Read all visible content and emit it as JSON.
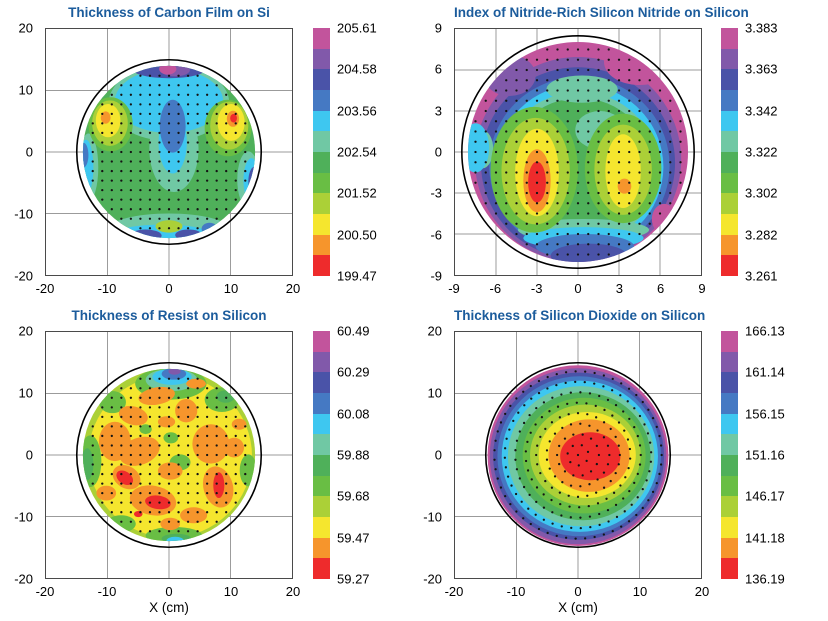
{
  "page": {
    "background": "#ffffff",
    "title_color": "#1c5c9c"
  },
  "palette": [
    "#c2549c",
    "#8159aa",
    "#4a53a8",
    "#4579c3",
    "#3ec7f0",
    "#70c8a4",
    "#4fb05a",
    "#69be44",
    "#abd037",
    "#f5e62e",
    "#f6952c",
    "#ee2b2c"
  ],
  "grid_color": "#9b9b9b",
  "chart_data": [
    {
      "id": "carbon-film",
      "type": "heatmap",
      "title": "Thickness of Carbon Film on Si",
      "xlabel": "",
      "axis": {
        "min": -20,
        "max": 20,
        "ticks": [
          -20,
          -10,
          0,
          10,
          20
        ]
      },
      "wafer_radius": 15,
      "fill_radius": 14,
      "fill_center": [
        0,
        0
      ],
      "colorbar_labels": [
        "205.61",
        "204.58",
        "203.56",
        "202.54",
        "201.52",
        "200.50",
        "199.47"
      ],
      "base_color": 7,
      "blobs": [
        [
          6,
          0,
          8,
          9.8,
          6.2
        ],
        [
          6,
          0.8,
          0.5,
          4.0,
          7.0
        ],
        [
          5,
          0,
          8.3,
          8.8,
          5.2
        ],
        [
          5,
          0.6,
          1.5,
          2.3,
          5.0
        ],
        [
          4,
          0.6,
          4.2,
          2.1,
          4.3
        ],
        [
          6,
          -13.1,
          -2.5,
          1.6,
          5.5
        ],
        [
          5,
          -13.5,
          -2.5,
          1.2,
          4.5
        ],
        [
          4,
          -13.9,
          -0.5,
          0.8,
          2.0
        ],
        [
          6,
          12.9,
          -4.5,
          1.8,
          4.6
        ],
        [
          5,
          13.4,
          -4.6,
          1.3,
          3.6
        ],
        [
          3,
          13.9,
          -4.8,
          1.0,
          2.4
        ],
        [
          6,
          0,
          -12.4,
          9.6,
          2.4
        ],
        [
          5,
          -1,
          -13.3,
          7.6,
          1.5
        ],
        [
          9,
          0,
          -12.1,
          2.2,
          1.0
        ],
        [
          3,
          -3.8,
          -13.6,
          2.6,
          1.0
        ],
        [
          3,
          3.2,
          -13.5,
          2.2,
          0.9
        ],
        [
          4,
          6.6,
          -12.5,
          1.3,
          1.0
        ],
        [
          3,
          0,
          13.5,
          6.0,
          1.5
        ],
        [
          2,
          1.0,
          13.3,
          2.4,
          1.0
        ],
        [
          1,
          -0.2,
          13.5,
          1.4,
          0.9
        ],
        [
          8,
          -9.5,
          4.5,
          3.6,
          4.4
        ],
        [
          9,
          -9.6,
          4.7,
          2.9,
          3.7
        ],
        [
          10,
          -9.9,
          5.1,
          2.0,
          2.7
        ],
        [
          11,
          -10.3,
          5.6,
          0.8,
          1.0
        ],
        [
          8,
          9.6,
          3.9,
          3.8,
          4.6
        ],
        [
          9,
          9.8,
          4.3,
          3.1,
          3.9
        ],
        [
          10,
          10.1,
          4.8,
          2.2,
          3.0
        ],
        [
          11,
          10.4,
          5.4,
          1.0,
          1.3
        ],
        [
          12,
          10.5,
          5.5,
          0.55,
          0.7
        ]
      ],
      "dots": {
        "pattern": "grid",
        "spacing": 1.55,
        "clip": 13.8
      }
    },
    {
      "id": "nitride-index",
      "type": "heatmap",
      "title": "Index of Nitride-Rich Silicon Nitride on Silicon",
      "xlabel": "",
      "axis": {
        "min": -9,
        "max": 9,
        "ticks": [
          -9,
          -6,
          -3,
          0,
          3,
          6,
          9
        ]
      },
      "wafer_radius": 8.5,
      "fill_radius": 8.05,
      "fill_center": [
        0,
        0
      ],
      "colorbar_labels": [
        "3.383",
        "3.363",
        "3.342",
        "3.322",
        "3.302",
        "3.282",
        "3.261"
      ],
      "base_color": 1,
      "blobs": [
        [
          2,
          0,
          -0.55,
          7.55,
          7.5
        ],
        [
          3,
          0,
          -0.8,
          7.1,
          7.0
        ],
        [
          4,
          0.1,
          -1.0,
          6.6,
          6.5
        ],
        [
          5,
          0.1,
          -1.1,
          6.15,
          6.05
        ],
        [
          6,
          0.1,
          -1.2,
          5.75,
          5.6
        ],
        [
          7,
          0.1,
          -1.25,
          5.35,
          5.2
        ],
        [
          1,
          4.5,
          6.6,
          2.6,
          1.7
        ],
        [
          2,
          -5.0,
          5.6,
          1.9,
          1.5
        ],
        [
          1,
          6.3,
          -4.9,
          0.9,
          1.1
        ],
        [
          6,
          0.4,
          -5.7,
          4.8,
          0.8
        ],
        [
          5,
          0.4,
          -6.3,
          4.4,
          0.8
        ],
        [
          4,
          0.5,
          -6.9,
          3.6,
          0.9
        ],
        [
          3,
          0.8,
          -7.6,
          2.8,
          0.9
        ],
        [
          6,
          -7.0,
          0.2,
          0.8,
          1.4
        ],
        [
          5,
          -7.5,
          0.3,
          1.0,
          1.8
        ],
        [
          6,
          0.3,
          4.6,
          2.6,
          1.0
        ],
        [
          6,
          1.6,
          1.6,
          1.8,
          1.4
        ],
        [
          8,
          -3.2,
          -1.3,
          3.2,
          4.6
        ],
        [
          9,
          -3.1,
          -1.4,
          2.5,
          3.9
        ],
        [
          10,
          -3.0,
          -1.5,
          1.6,
          3.2
        ],
        [
          11,
          -3.0,
          -2.1,
          1.0,
          2.3
        ],
        [
          12,
          -3.0,
          -2.2,
          0.65,
          1.5
        ],
        [
          8,
          3.3,
          -1.2,
          2.8,
          4.0
        ],
        [
          9,
          3.3,
          -1.3,
          2.1,
          3.3
        ],
        [
          10,
          3.3,
          -1.4,
          1.3,
          2.7
        ],
        [
          11,
          3.4,
          -2.5,
          0.5,
          0.55
        ]
      ],
      "dots": {
        "pattern": "grid",
        "spacing": 0.75,
        "clip": 7.85
      }
    },
    {
      "id": "resist",
      "type": "heatmap",
      "title": "Thickness of Resist on Silicon",
      "xlabel": "X (cm)",
      "axis": {
        "min": -20,
        "max": 20,
        "ticks": [
          -20,
          -10,
          0,
          10,
          20
        ]
      },
      "wafer_radius": 15,
      "fill_radius": 14,
      "fill_center": [
        0,
        0
      ],
      "colorbar_labels": [
        "60.49",
        "60.29",
        "60.08",
        "59.88",
        "59.68",
        "59.47",
        "59.27"
      ],
      "base_color": 9,
      "blobs": [
        [
          10,
          0.2,
          -0.2,
          13.3,
          13.2
        ],
        [
          8,
          -12.8,
          -1,
          1.8,
          4.2
        ],
        [
          7,
          -13.3,
          -1.5,
          1.0,
          2.6
        ],
        [
          8,
          -9.2,
          8.6,
          2.2,
          1.8
        ],
        [
          8,
          8.6,
          9.0,
          2.8,
          2.0
        ],
        [
          7,
          9.2,
          9.5,
          1.5,
          1.0
        ],
        [
          8,
          12.9,
          -2.5,
          1.4,
          2.6
        ],
        [
          8,
          0.8,
          -13.1,
          4.6,
          1.4
        ],
        [
          7,
          1.2,
          -13.6,
          2.4,
          0.8
        ],
        [
          8,
          -7.8,
          -11.2,
          2.4,
          1.4
        ],
        [
          8,
          0.3,
          11.6,
          5.8,
          2.6
        ],
        [
          6,
          0.4,
          12.2,
          4.2,
          1.8
        ],
        [
          5,
          0.5,
          12.7,
          3.2,
          1.3
        ],
        [
          4,
          0.8,
          13.2,
          2.0,
          0.95
        ],
        [
          2,
          0.9,
          13.6,
          1.0,
          0.55
        ],
        [
          8,
          1.8,
          -1.2,
          1.7,
          1.3
        ],
        [
          8,
          0.3,
          2.8,
          1.2,
          0.9
        ],
        [
          8,
          -3.8,
          4.2,
          1.0,
          0.8
        ],
        [
          11,
          -2,
          9.6,
          3.0,
          1.4,
          10
        ],
        [
          11,
          2.8,
          7.2,
          1.8,
          1.9
        ],
        [
          11,
          -5.8,
          6.4,
          2.4,
          1.5,
          -15
        ],
        [
          11,
          -8.8,
          2.2,
          2.6,
          3.2
        ],
        [
          11,
          -4.8,
          0.6,
          3.4,
          2.2,
          20
        ],
        [
          11,
          -6.9,
          -3.6,
          2.4,
          1.8,
          -30
        ],
        [
          11,
          -2.6,
          -7.4,
          3.8,
          2.4,
          -10
        ],
        [
          11,
          0.2,
          -2.6,
          2.0,
          1.4
        ],
        [
          11,
          6.8,
          1.8,
          3.0,
          3.2
        ],
        [
          11,
          10.6,
          1.2,
          1.6,
          1.6
        ],
        [
          11,
          8.0,
          -5.2,
          2.4,
          3.4,
          15
        ],
        [
          11,
          4.0,
          -9.8,
          2.2,
          1.3
        ],
        [
          11,
          0.2,
          -11.2,
          1.6,
          1.0
        ],
        [
          11,
          -10.2,
          -6.2,
          1.6,
          1.2
        ],
        [
          11,
          4.4,
          11.6,
          1.6,
          0.8
        ],
        [
          11,
          -0.4,
          5.4,
          1.4,
          0.9
        ],
        [
          11,
          11.4,
          5.0,
          1.2,
          0.9
        ],
        [
          12,
          -7.2,
          -3.7,
          1.5,
          1.0,
          -35
        ],
        [
          12,
          -1.8,
          -7.7,
          2.1,
          1.1,
          -8
        ],
        [
          12,
          8.1,
          -4.9,
          0.9,
          2.1
        ],
        [
          12,
          -5.0,
          -9.6,
          0.7,
          0.5
        ],
        [
          5,
          1.0,
          -13.9,
          1.4,
          0.6
        ]
      ],
      "dots": {
        "pattern": "grid",
        "spacing": 1.55,
        "clip": 13.8
      }
    },
    {
      "id": "silicon-dioxide",
      "type": "heatmap",
      "title": "Thickness of Silicon Dioxide on Silicon",
      "xlabel": "X (cm)",
      "axis": {
        "min": -20,
        "max": 20,
        "ticks": [
          -20,
          -10,
          0,
          10,
          20
        ]
      },
      "wafer_radius": 15,
      "fill_radius": 14.7,
      "fill_center": [
        0,
        -0.1
      ],
      "colorbar_labels": [
        "166.13",
        "161.14",
        "156.15",
        "151.16",
        "146.17",
        "141.18",
        "136.19"
      ],
      "base_color": 1,
      "blobs": [
        [
          2,
          0,
          -0.2,
          14.35,
          14.3
        ],
        [
          3,
          0.1,
          -0.2,
          13.9,
          13.6
        ],
        [
          4,
          0.2,
          -0.2,
          13.3,
          13.0
        ],
        [
          5,
          0.3,
          -0.2,
          12.7,
          12.3
        ],
        [
          6,
          0.5,
          -0.2,
          11.9,
          11.4
        ],
        [
          7,
          0.8,
          -0.2,
          11.0,
          10.4
        ],
        [
          8,
          1.0,
          -0.1,
          10.0,
          9.4
        ],
        [
          9,
          1.2,
          0,
          9.0,
          8.2
        ],
        [
          10,
          1.5,
          0,
          7.9,
          7.0
        ],
        [
          11,
          1.8,
          -0.1,
          6.6,
          5.9
        ],
        [
          12,
          2.0,
          -0.2,
          4.9,
          3.9
        ]
      ],
      "dots": {
        "pattern": "rings",
        "ring_spacing": 1.7,
        "rings": 8,
        "dot_spacing": 1.55,
        "clip": 13.7
      }
    }
  ]
}
